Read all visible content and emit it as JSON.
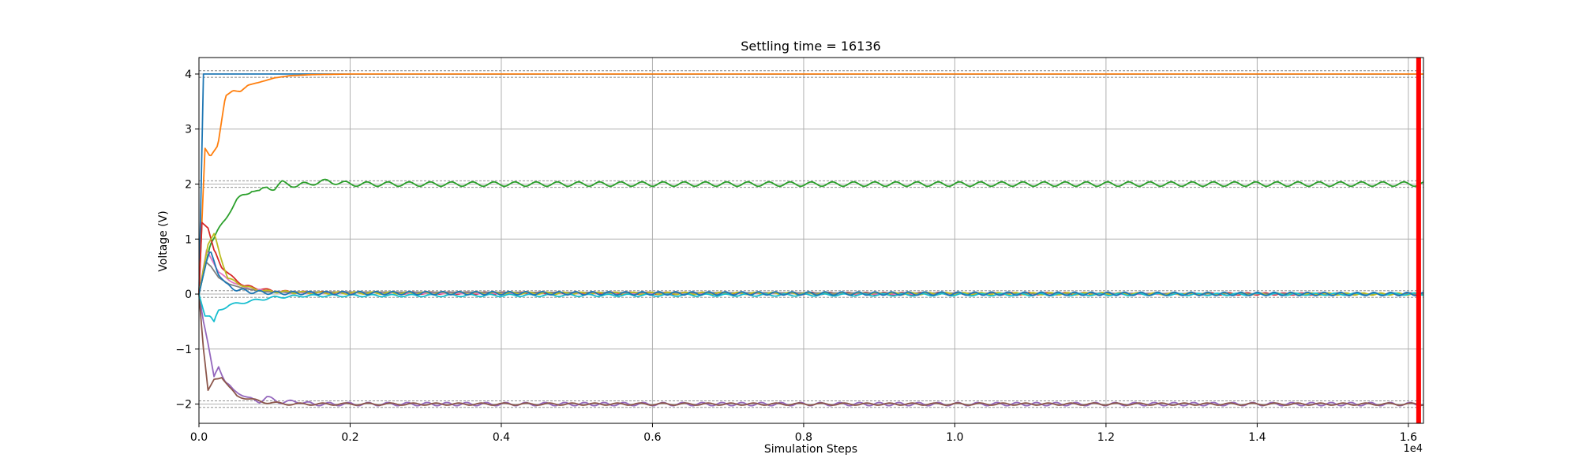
{
  "chart_data": {
    "type": "line",
    "title": "Settling time = 16136",
    "xlabel": "Simulation Steps",
    "ylabel": "Voltage (V)",
    "x_offset_label": "1e4",
    "xlim": [
      0,
      16200
    ],
    "ylim": [
      -2.35,
      4.3
    ],
    "x_ticks": [
      0,
      2000,
      4000,
      6000,
      8000,
      10000,
      12000,
      14000,
      16000
    ],
    "x_tick_labels": [
      "0.0",
      "0.2",
      "0.4",
      "0.6",
      "0.8",
      "1.0",
      "1.2",
      "1.4",
      "1.6"
    ],
    "y_ticks": [
      -2,
      -1,
      0,
      1,
      2,
      3,
      4
    ],
    "y_tick_labels": [
      "−2",
      "−1",
      "0",
      "1",
      "2",
      "3",
      "4"
    ],
    "grid": true,
    "settling_marker": {
      "x": 16136,
      "color": "#ff0000"
    },
    "tolerance_band": {
      "half_width": 0.06,
      "color": "#808080"
    },
    "series": [
      {
        "target": 4,
        "color": "#1f77b4",
        "points": [
          [
            0,
            0
          ],
          [
            60,
            4
          ],
          [
            16200,
            4
          ]
        ]
      },
      {
        "target": 4,
        "color": "#ff7f0e",
        "points": [
          [
            0,
            0
          ],
          [
            80,
            2.65
          ],
          [
            150,
            2.5
          ],
          [
            250,
            2.7
          ],
          [
            350,
            3.6
          ],
          [
            450,
            3.7
          ],
          [
            550,
            3.68
          ],
          [
            650,
            3.8
          ],
          [
            800,
            3.85
          ],
          [
            1000,
            3.93
          ],
          [
            1200,
            3.97
          ],
          [
            1500,
            3.99
          ],
          [
            2000,
            4
          ],
          [
            16200,
            4
          ]
        ]
      },
      {
        "target": 2,
        "color": "#2ca02c",
        "points": [
          [
            0,
            0
          ],
          [
            150,
            0.9
          ],
          [
            300,
            1.25
          ],
          [
            400,
            1.5
          ],
          [
            500,
            1.7
          ],
          [
            600,
            1.8
          ],
          [
            700,
            1.9
          ],
          [
            800,
            1.85
          ],
          [
            900,
            1.95
          ],
          [
            1000,
            1.92
          ],
          [
            1100,
            2.02
          ],
          [
            1300,
            1.97
          ],
          [
            1500,
            2.02
          ],
          [
            1700,
            2.05
          ],
          [
            2000,
            2
          ],
          [
            16200,
            2
          ]
        ],
        "ripple": {
          "amp": 0.04,
          "period": 280
        }
      },
      {
        "target": 0,
        "color": "#d62728",
        "points": [
          [
            0,
            0
          ],
          [
            40,
            1.3
          ],
          [
            120,
            1.2
          ],
          [
            200,
            0.8
          ],
          [
            300,
            0.5
          ],
          [
            400,
            0.35
          ],
          [
            500,
            0.25
          ],
          [
            600,
            0.15
          ],
          [
            800,
            0.1
          ],
          [
            1000,
            0.05
          ],
          [
            1400,
            0.03
          ],
          [
            2000,
            0.02
          ],
          [
            16200,
            0
          ]
        ],
        "ripple": {
          "amp": 0.02,
          "period": 240
        }
      },
      {
        "target": -2,
        "color": "#9467bd",
        "points": [
          [
            0,
            0
          ],
          [
            60,
            -0.5
          ],
          [
            120,
            -0.9
          ],
          [
            200,
            -1.5
          ],
          [
            260,
            -1.3
          ],
          [
            350,
            -1.6
          ],
          [
            450,
            -1.75
          ],
          [
            550,
            -1.8
          ],
          [
            650,
            -1.9
          ],
          [
            800,
            -1.95
          ],
          [
            900,
            -1.88
          ],
          [
            1100,
            -1.97
          ],
          [
            1300,
            -1.95
          ],
          [
            1500,
            -2
          ],
          [
            16200,
            -2
          ]
        ],
        "ripple": {
          "amp": 0.03,
          "period": 260
        }
      },
      {
        "target": -2,
        "color": "#8c564b",
        "points": [
          [
            0,
            0
          ],
          [
            60,
            -1.0
          ],
          [
            120,
            -1.75
          ],
          [
            200,
            -1.55
          ],
          [
            300,
            -1.5
          ],
          [
            400,
            -1.7
          ],
          [
            500,
            -1.85
          ],
          [
            700,
            -1.92
          ],
          [
            900,
            -1.97
          ],
          [
            1200,
            -2
          ],
          [
            16200,
            -2
          ]
        ],
        "ripple": {
          "amp": 0.02,
          "period": 300
        }
      },
      {
        "target": 0,
        "color": "#e377c2",
        "points": [
          [
            0,
            0
          ],
          [
            100,
            0.8
          ],
          [
            180,
            0.6
          ],
          [
            260,
            0.4
          ],
          [
            400,
            0.25
          ],
          [
            600,
            0.12
          ],
          [
            900,
            0.05
          ],
          [
            1300,
            0.02
          ],
          [
            16200,
            0
          ]
        ],
        "ripple": {
          "amp": 0.01,
          "period": 250
        }
      },
      {
        "target": 0,
        "color": "#7f7f7f",
        "points": [
          [
            0,
            0
          ],
          [
            80,
            0.6
          ],
          [
            160,
            0.5
          ],
          [
            260,
            0.3
          ],
          [
            400,
            0.18
          ],
          [
            600,
            0.1
          ],
          [
            900,
            0.04
          ],
          [
            16200,
            0
          ]
        ]
      },
      {
        "target": 0,
        "color": "#bcbd22",
        "points": [
          [
            0,
            0
          ],
          [
            120,
            0.9
          ],
          [
            200,
            1.1
          ],
          [
            280,
            0.7
          ],
          [
            380,
            0.3
          ],
          [
            500,
            0.2
          ],
          [
            700,
            0.1
          ],
          [
            900,
            0.05
          ],
          [
            1500,
            0.02
          ],
          [
            16200,
            0
          ]
        ],
        "ripple": {
          "amp": 0.02,
          "period": 230
        }
      },
      {
        "target": 0,
        "color": "#17becf",
        "points": [
          [
            0,
            0
          ],
          [
            80,
            -0.4
          ],
          [
            150,
            -0.4
          ],
          [
            200,
            -0.5
          ],
          [
            260,
            -0.3
          ],
          [
            400,
            -0.2
          ],
          [
            600,
            -0.15
          ],
          [
            800,
            -0.1
          ],
          [
            1000,
            -0.06
          ],
          [
            1400,
            -0.03
          ],
          [
            16200,
            0
          ]
        ],
        "ripple": {
          "amp": 0.02,
          "period": 260
        }
      },
      {
        "target": 0,
        "color": "#1f77b4",
        "points": [
          [
            0,
            0
          ],
          [
            100,
            0.6
          ],
          [
            150,
            0.8
          ],
          [
            250,
            0.4
          ],
          [
            350,
            0.18
          ],
          [
            500,
            0.08
          ],
          [
            700,
            0.04
          ],
          [
            1000,
            0.02
          ],
          [
            16200,
            0
          ]
        ],
        "ripple": {
          "amp": 0.03,
          "period": 220
        }
      }
    ]
  }
}
